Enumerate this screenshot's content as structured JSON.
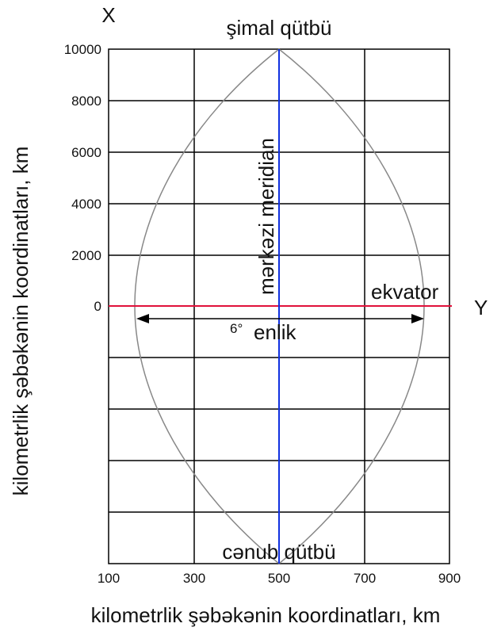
{
  "labels": {
    "x_axis_letter": "X",
    "y_axis_letter": "Y",
    "north_pole": "şimal qütbü",
    "south_pole": "cənub qütbü",
    "central_meridian": "mərkəzi meridian",
    "equator": "ekvator",
    "zone_width": "6°",
    "zone_width_word": "enlik",
    "left_axis_title": "kilometrlik şəbəkənin koordinatları, km",
    "bottom_axis_title": "kilometrlik şəbəkənin koordinatları, km"
  },
  "y_ticks": [
    "10000",
    "8000",
    "6000",
    "4000",
    "2000",
    "0"
  ],
  "x_ticks": [
    "100",
    "300",
    "500",
    "700",
    "900"
  ]
}
